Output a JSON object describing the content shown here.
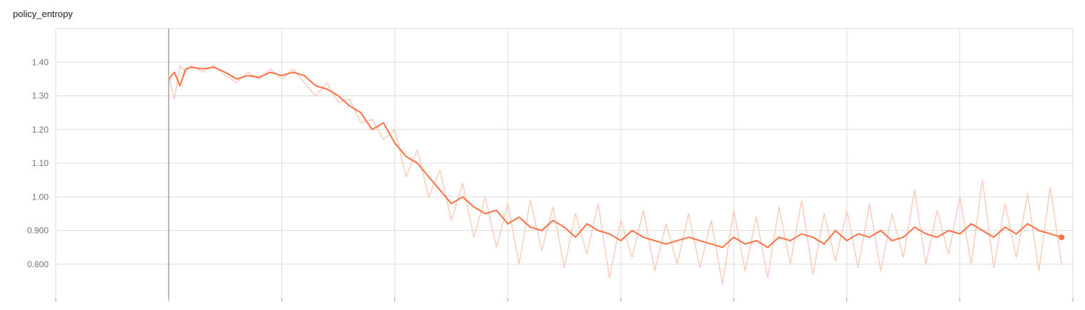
{
  "chart_data": {
    "type": "line",
    "title": "policy_entropy",
    "xlabel": "",
    "ylabel": "",
    "ylim": [
      0.7,
      1.5
    ],
    "yticks": [
      {
        "value": 0.8,
        "label": "0.800"
      },
      {
        "value": 0.9,
        "label": "0.900"
      },
      {
        "value": 1.0,
        "label": "1.00"
      },
      {
        "value": 1.1,
        "label": "1.10"
      },
      {
        "value": 1.2,
        "label": "1.20"
      },
      {
        "value": 1.3,
        "label": "1.30"
      },
      {
        "value": 1.4,
        "label": "1.40"
      }
    ],
    "xlim": [
      0,
      9
    ],
    "xgrid": [
      0,
      1,
      2,
      3,
      4,
      5,
      6,
      7,
      8,
      9
    ],
    "grid": true,
    "legend": "none",
    "colors": {
      "smoothed": "#ff7043",
      "raw": "#ffccbc",
      "grid": "#dddddd",
      "axis": "#9e9e9e"
    },
    "series": [
      {
        "style": "smoothed",
        "x": [
          1.0,
          1.05,
          1.1,
          1.15,
          1.2,
          1.3,
          1.4,
          1.5,
          1.6,
          1.7,
          1.8,
          1.9,
          2.0,
          2.1,
          2.2,
          2.3,
          2.4,
          2.5,
          2.6,
          2.7,
          2.8,
          2.9,
          3.0,
          3.1,
          3.2,
          3.3,
          3.4,
          3.5,
          3.6,
          3.7,
          3.8,
          3.9,
          4.0,
          4.1,
          4.2,
          4.3,
          4.4,
          4.5,
          4.6,
          4.7,
          4.8,
          4.9,
          5.0,
          5.1,
          5.2,
          5.3,
          5.4,
          5.5,
          5.6,
          5.7,
          5.8,
          5.9,
          6.0,
          6.1,
          6.2,
          6.3,
          6.4,
          6.5,
          6.6,
          6.7,
          6.8,
          6.9,
          7.0,
          7.1,
          7.2,
          7.3,
          7.4,
          7.5,
          7.6,
          7.7,
          7.8,
          7.9,
          8.0,
          8.1,
          8.2,
          8.3,
          8.4,
          8.5,
          8.6,
          8.7,
          8.8,
          8.9
        ],
        "y": [
          1.35,
          1.37,
          1.33,
          1.38,
          1.385,
          1.38,
          1.385,
          1.37,
          1.35,
          1.36,
          1.355,
          1.37,
          1.36,
          1.37,
          1.36,
          1.33,
          1.32,
          1.3,
          1.27,
          1.25,
          1.2,
          1.22,
          1.16,
          1.12,
          1.1,
          1.06,
          1.02,
          0.98,
          1.0,
          0.97,
          0.95,
          0.96,
          0.92,
          0.94,
          0.91,
          0.9,
          0.93,
          0.91,
          0.88,
          0.92,
          0.9,
          0.89,
          0.87,
          0.9,
          0.88,
          0.87,
          0.86,
          0.87,
          0.88,
          0.87,
          0.86,
          0.85,
          0.88,
          0.86,
          0.87,
          0.85,
          0.88,
          0.87,
          0.89,
          0.88,
          0.86,
          0.9,
          0.87,
          0.89,
          0.88,
          0.9,
          0.87,
          0.88,
          0.91,
          0.89,
          0.88,
          0.9,
          0.89,
          0.92,
          0.9,
          0.88,
          0.91,
          0.89,
          0.92,
          0.9,
          0.89,
          0.88
        ]
      },
      {
        "style": "raw",
        "x": [
          1.0,
          1.05,
          1.1,
          1.15,
          1.2,
          1.3,
          1.4,
          1.5,
          1.6,
          1.7,
          1.8,
          1.9,
          2.0,
          2.1,
          2.2,
          2.3,
          2.4,
          2.5,
          2.6,
          2.7,
          2.8,
          2.9,
          3.0,
          3.1,
          3.2,
          3.3,
          3.4,
          3.5,
          3.6,
          3.7,
          3.8,
          3.9,
          4.0,
          4.1,
          4.2,
          4.3,
          4.4,
          4.5,
          4.6,
          4.7,
          4.8,
          4.9,
          5.0,
          5.1,
          5.2,
          5.3,
          5.4,
          5.5,
          5.6,
          5.7,
          5.8,
          5.9,
          6.0,
          6.1,
          6.2,
          6.3,
          6.4,
          6.5,
          6.6,
          6.7,
          6.8,
          6.9,
          7.0,
          7.1,
          7.2,
          7.3,
          7.4,
          7.5,
          7.6,
          7.7,
          7.8,
          7.9,
          8.0,
          8.1,
          8.2,
          8.3,
          8.4,
          8.5,
          8.6,
          8.7,
          8.8,
          8.9
        ],
        "y": [
          1.36,
          1.29,
          1.39,
          1.37,
          1.39,
          1.37,
          1.39,
          1.36,
          1.34,
          1.37,
          1.35,
          1.38,
          1.35,
          1.38,
          1.34,
          1.3,
          1.34,
          1.28,
          1.29,
          1.22,
          1.23,
          1.17,
          1.2,
          1.06,
          1.14,
          1.0,
          1.08,
          0.93,
          1.04,
          0.88,
          1.0,
          0.85,
          0.98,
          0.8,
          0.99,
          0.84,
          0.97,
          0.79,
          0.95,
          0.83,
          0.98,
          0.76,
          0.93,
          0.82,
          0.96,
          0.78,
          0.92,
          0.8,
          0.95,
          0.79,
          0.93,
          0.74,
          0.96,
          0.78,
          0.94,
          0.76,
          0.97,
          0.8,
          0.99,
          0.77,
          0.95,
          0.81,
          0.96,
          0.79,
          0.98,
          0.78,
          0.95,
          0.82,
          1.02,
          0.8,
          0.96,
          0.83,
          1.0,
          0.8,
          1.05,
          0.79,
          0.98,
          0.82,
          1.01,
          0.78,
          1.03,
          0.8
        ]
      }
    ]
  }
}
